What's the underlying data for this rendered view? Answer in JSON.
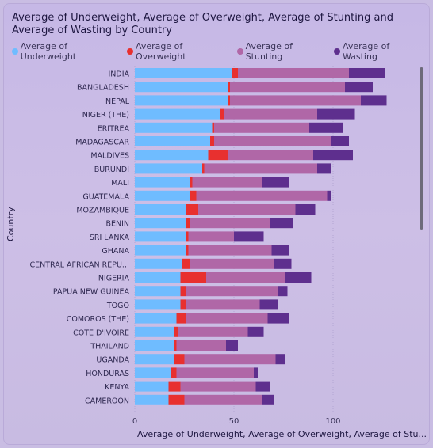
{
  "title": "Average of Underweight, Average of Overweight, Average of Stunting and Average of Wasting by Country",
  "chart_data": {
    "type": "bar",
    "orientation": "horizontal",
    "stacked": true,
    "categories": [
      "INDIA",
      "BANGLADESH",
      "NEPAL",
      "NIGER (THE)",
      "ERITREA",
      "MADAGASCAR",
      "MALDIVES",
      "BURUNDI",
      "MALI",
      "GUATEMALA",
      "MOZAMBIQUE",
      "BENIN",
      "SRI LANKA",
      "GHANA",
      "CENTRAL AFRICAN REPU...",
      "NIGERIA",
      "PAPUA NEW GUINEA",
      "TOGO",
      "COMOROS (THE)",
      "COTE D'IVOIRE",
      "THAILAND",
      "UGANDA",
      "HONDURAS",
      "KENYA",
      "CAMEROON"
    ],
    "series": [
      {
        "name": "Average of Underweight",
        "color": "#6fbcff",
        "values": [
          49,
          47,
          47,
          43,
          39,
          38,
          37,
          34,
          28,
          28,
          26,
          26,
          26,
          26,
          24,
          23,
          23,
          23,
          21,
          20,
          20,
          20,
          18,
          17,
          17
        ]
      },
      {
        "name": "Average of Overweight",
        "color": "#e8302f",
        "values": [
          3,
          1,
          1,
          2,
          1,
          2,
          10,
          1,
          1,
          3,
          6,
          2,
          1,
          1,
          4,
          13,
          3,
          3,
          5,
          2,
          1,
          5,
          3,
          6,
          8
        ]
      },
      {
        "name": "Average of Stunting",
        "color": "#b067a7",
        "values": [
          56,
          58,
          66,
          47,
          48,
          59,
          43,
          57,
          35,
          66,
          49,
          40,
          23,
          42,
          42,
          40,
          46,
          37,
          41,
          35,
          25,
          46,
          39,
          38,
          39
        ]
      },
      {
        "name": "Average of Wasting",
        "color": "#5e2f8e",
        "values": [
          18,
          14,
          13,
          19,
          17,
          9,
          20,
          7,
          14,
          2,
          10,
          12,
          15,
          9,
          9,
          13,
          5,
          9,
          11,
          8,
          6,
          5,
          2,
          7,
          6
        ]
      }
    ],
    "xlabel": "Average of Underweight, Average of Overweight, Average of Stu...",
    "ylabel": "Country",
    "xlim": [
      0,
      150
    ],
    "xticks": [
      0,
      50,
      100
    ],
    "grid": true,
    "legend_position": "top-left"
  }
}
